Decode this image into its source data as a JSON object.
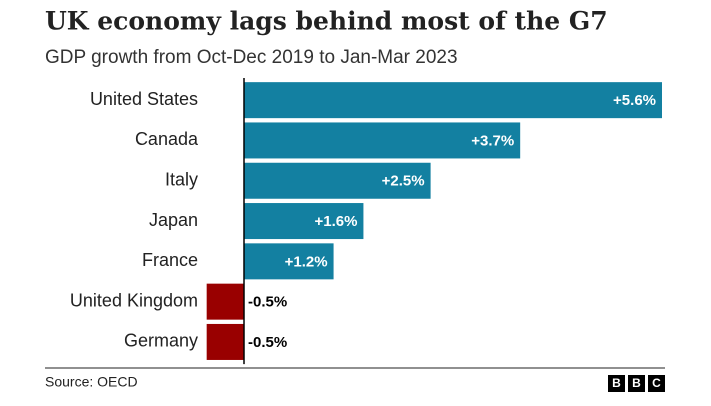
{
  "chart_data": {
    "type": "barh",
    "title": "UK economy lags behind most of the G7",
    "subtitle": "GDP growth from Oct-Dec 2019 to Jan-Mar 2023",
    "categories": [
      "United States",
      "Canada",
      "Italy",
      "Japan",
      "France",
      "United Kingdom",
      "Germany"
    ],
    "values": [
      5.6,
      3.7,
      2.5,
      1.6,
      1.2,
      -0.5,
      -0.5
    ],
    "value_labels": [
      "+5.6%",
      "+3.7%",
      "+2.5%",
      "+1.6%",
      "+1.2%",
      "-0.5%",
      "-0.5%"
    ],
    "colors": [
      "#1380a1",
      "#1380a1",
      "#1380a1",
      "#1380a1",
      "#1380a1",
      "#990000",
      "#990000"
    ],
    "source": "Source: OECD",
    "logo": [
      "B",
      "B",
      "C"
    ]
  }
}
